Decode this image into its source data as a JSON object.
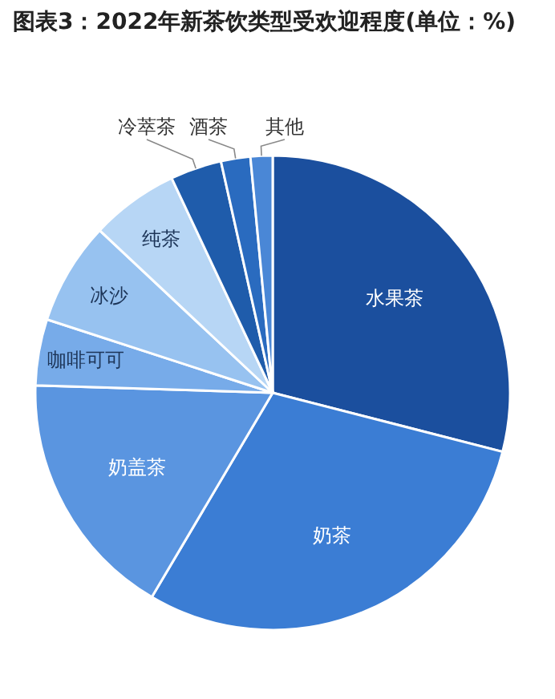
{
  "chart_data": {
    "type": "pie",
    "title": "图表3：2022年新茶饮类型受欢迎程度(单位：%)",
    "categories": [
      "水果茶",
      "奶茶",
      "奶盖茶",
      "咖啡可可",
      "冰沙",
      "纯茶",
      "冷萃茶",
      "酒茶",
      "其他"
    ],
    "values": [
      29,
      29.5,
      17,
      4.5,
      7,
      6,
      3.5,
      2,
      1.5
    ],
    "colors": [
      "#1b4f9e",
      "#3b7dd4",
      "#5a95e0",
      "#77abe9",
      "#97c2f0",
      "#b7d6f5",
      "#1f5cab",
      "#2a6bbf",
      "#4a87d6"
    ]
  }
}
